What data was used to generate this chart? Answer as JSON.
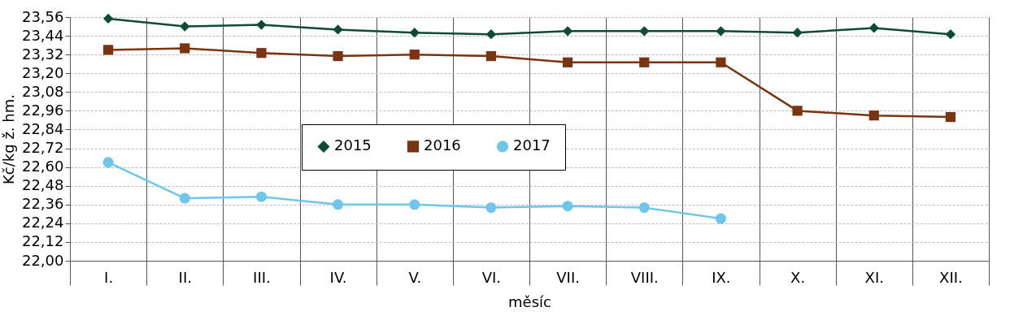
{
  "chart_data": {
    "type": "line",
    "categories": [
      "I.",
      "II.",
      "III.",
      "IV.",
      "V.",
      "VI.",
      "VII.",
      "VIII.",
      "IX.",
      "X.",
      "XI.",
      "XII."
    ],
    "series": [
      {
        "name": "2015",
        "color": "#0f4a33",
        "marker": "diamond",
        "values": [
          23.55,
          23.5,
          23.51,
          23.48,
          23.46,
          23.45,
          23.47,
          23.47,
          23.47,
          23.46,
          23.49,
          23.45
        ]
      },
      {
        "name": "2016",
        "color": "#7b3410",
        "marker": "square",
        "values": [
          23.35,
          23.36,
          23.33,
          23.31,
          23.32,
          23.31,
          23.27,
          23.27,
          23.27,
          22.96,
          22.93,
          22.92
        ]
      },
      {
        "name": "2017",
        "color": "#6ec6ea",
        "marker": "circle",
        "values": [
          22.63,
          22.4,
          22.41,
          22.36,
          22.36,
          22.34,
          22.35,
          22.34,
          22.27,
          null,
          null,
          null
        ]
      }
    ],
    "xlabel": "měsíc",
    "ylabel": "Kč/kg ž. hm.",
    "ylim": [
      22.0,
      23.56
    ],
    "yticks": [
      {
        "value": 22.0,
        "label": "22,00"
      },
      {
        "value": 22.12,
        "label": "22,12"
      },
      {
        "value": 22.24,
        "label": "22,24"
      },
      {
        "value": 22.36,
        "label": "22,36"
      },
      {
        "value": 22.48,
        "label": "22,48"
      },
      {
        "value": 22.6,
        "label": "22,60"
      },
      {
        "value": 22.72,
        "label": "22,72"
      },
      {
        "value": 22.84,
        "label": "22,84"
      },
      {
        "value": 22.96,
        "label": "22,96"
      },
      {
        "value": 23.08,
        "label": "23,08"
      },
      {
        "value": 23.2,
        "label": "23,20"
      },
      {
        "value": 23.32,
        "label": "23,32"
      },
      {
        "value": 23.44,
        "label": "23,44"
      },
      {
        "value": 23.56,
        "label": "23,56"
      }
    ],
    "grid": true,
    "legend": "center",
    "line_style": "solid"
  }
}
